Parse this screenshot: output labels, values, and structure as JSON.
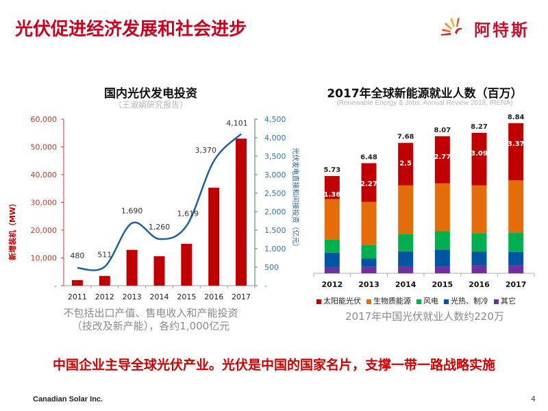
{
  "header": {
    "title": "光伏促进经济发展和社会进步",
    "logo_text": "阿特斯"
  },
  "left_panel": {
    "note_line1": "不包括出口产值、售电收入和产能投资",
    "note_line2": "（技改及新产能），各约1,000亿元"
  },
  "right_panel": {
    "note": "2017年中国光伏就业人数约220万"
  },
  "bottom_message": "中国企业主导全球光伏产业。光伏是中国的国家名片，支撑一带一路战略实施",
  "footer": {
    "company": "Canadian Solar Inc.",
    "page_number": "4"
  },
  "colors": {
    "title_red": "#c8001e",
    "bar_red": "#c00000",
    "line_blue": "#1f5fa0",
    "axis_left": "#c0392b",
    "axis_right": "#2e75b6",
    "solar": "#c00000",
    "biomass": "#e46c0a",
    "wind": "#00b050",
    "solar_heat": "#0055a0",
    "other": "#7030a0"
  },
  "chart_data": [
    {
      "type": "bar",
      "title": "国内光伏发电投资",
      "subtitle": "（王淑娟研究报告）",
      "categories": [
        "2011",
        "2012",
        "2013",
        "2014",
        "2015",
        "2016",
        "2017"
      ],
      "series": [
        {
          "name": "新增装机（MW）",
          "type": "bar",
          "axis": "left",
          "values": [
            2000,
            3500,
            12900,
            10600,
            15100,
            35300,
            53000
          ]
        },
        {
          "name": "光伏发电直接和间接投资（亿元）",
          "type": "line",
          "axis": "right",
          "values": [
            480,
            511,
            1690,
            1260,
            1619,
            3370,
            4101
          ],
          "labels": [
            "480",
            "511",
            "1,690",
            "1,260",
            "1,619",
            "3,370",
            "4,101"
          ]
        }
      ],
      "ylabel": "新增装机（MW）",
      "y2label": "光伏发电直接和间接投资（亿元）",
      "ylim": [
        0,
        60000
      ],
      "y2lim": [
        0,
        4500
      ],
      "yticks": [
        "-",
        "10,000",
        "20,000",
        "30,000",
        "40,000",
        "50,000",
        "60,000"
      ],
      "y2ticks": [
        "-",
        "500",
        "1,000",
        "1,500",
        "2,000",
        "2,500",
        "3,000",
        "3,500",
        "4,000",
        "4,500"
      ],
      "grid": false
    },
    {
      "type": "bar",
      "stacked": true,
      "title": "2017年全球新能源就业人数（百万）",
      "subtitle": "(Renewable Energy & Jobs, Annual Review 2018, IRENA)",
      "categories": [
        "2012",
        "2013",
        "2014",
        "2015",
        "2016",
        "2017"
      ],
      "totals": [
        "5.73",
        "6.48",
        "7.68",
        "8.07",
        "8.27",
        "8.84"
      ],
      "series": [
        {
          "name": "其它",
          "color_key": "other",
          "values": [
            0.33,
            0.37,
            0.4,
            0.4,
            0.45,
            0.45
          ]
        },
        {
          "name": "光热、制冷",
          "color_key": "solar_heat",
          "values": [
            0.89,
            0.5,
            0.9,
            1.0,
            0.82,
            0.81
          ]
        },
        {
          "name": "风电",
          "color_key": "wind",
          "values": [
            0.77,
            0.8,
            1.0,
            1.08,
            1.1,
            1.15
          ]
        },
        {
          "name": "生物质能源",
          "color_key": "biomass",
          "values": [
            2.38,
            2.54,
            2.88,
            2.82,
            2.81,
            3.06
          ]
        },
        {
          "name": "太阳能光伏",
          "color_key": "solar",
          "values": [
            1.36,
            2.27,
            2.5,
            2.77,
            3.09,
            3.37
          ],
          "labels": [
            "1.36",
            "2.27",
            "2.5",
            "2.77",
            "3.09",
            "3.37"
          ]
        }
      ],
      "legend": [
        "太阳能光伏",
        "生物质能源",
        "风电",
        "光热、制冷",
        "其它"
      ],
      "legend_position": "bottom",
      "ylim": [
        0,
        9.5
      ],
      "grid": false
    }
  ]
}
